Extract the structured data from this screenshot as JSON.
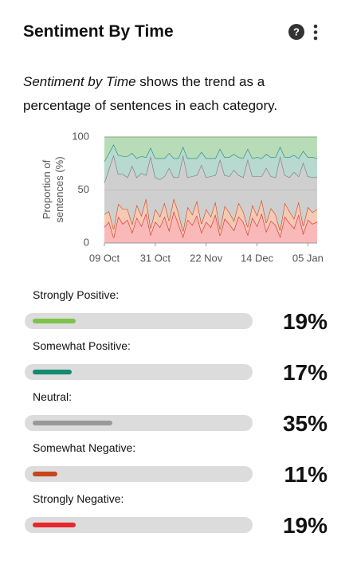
{
  "header": {
    "title": "Sentiment By Time"
  },
  "description": {
    "emphasis": "Sentiment by Time",
    "text": " shows the trend as a percentage of sentences in each category."
  },
  "chart_data": {
    "type": "stacked_area",
    "y_label": "Proportion of sentences (%)",
    "x": [
      "09 Oct",
      null,
      null,
      null,
      null,
      null,
      null,
      null,
      null,
      null,
      null,
      "31 Oct",
      null,
      null,
      null,
      null,
      null,
      null,
      null,
      null,
      null,
      null,
      "22 Nov",
      null,
      null,
      null,
      null,
      null,
      null,
      null,
      null,
      null,
      null,
      "14 Dec",
      null,
      null,
      null,
      null,
      null,
      null,
      null,
      null,
      null,
      null,
      "05 Jan",
      null,
      null
    ],
    "ylim": [
      0,
      100
    ],
    "yticks": [
      0,
      50,
      100
    ],
    "grid": true,
    "series": [
      {
        "name": "Strongly Negative",
        "color": "#e0262a",
        "fill": "#f9b9b9",
        "values": [
          15,
          20,
          5,
          25,
          18,
          22,
          10,
          24,
          16,
          28,
          8,
          20,
          15,
          25,
          12,
          30,
          18,
          6,
          22,
          17,
          26,
          10,
          20,
          15,
          27,
          7,
          23,
          18,
          12,
          25,
          20,
          8,
          24,
          16,
          28,
          11,
          21,
          17,
          6,
          25,
          19,
          14,
          27,
          9,
          22,
          18,
          20
        ]
      },
      {
        "name": "Somewhat Negative",
        "color": "#c9451d",
        "fill": "#f4cab5",
        "values": [
          12,
          10,
          8,
          12,
          14,
          10,
          8,
          12,
          10,
          14,
          6,
          12,
          10,
          13,
          9,
          12,
          11,
          5,
          12,
          10,
          14,
          8,
          12,
          10,
          12,
          6,
          12,
          11,
          9,
          13,
          10,
          7,
          12,
          10,
          13,
          8,
          12,
          10,
          6,
          13,
          11,
          9,
          12,
          7,
          12,
          11,
          12
        ]
      },
      {
        "name": "Neutral",
        "color": "#777777",
        "fill": "#cfcfcf",
        "values": [
          30,
          40,
          70,
          28,
          33,
          30,
          55,
          26,
          40,
          22,
          68,
          30,
          35,
          25,
          50,
          20,
          33,
          72,
          28,
          36,
          24,
          56,
          30,
          38,
          25,
          66,
          29,
          34,
          48,
          26,
          32,
          64,
          27,
          37,
          22,
          52,
          30,
          35,
          70,
          26,
          32,
          44,
          24,
          60,
          29,
          33,
          30
        ]
      },
      {
        "name": "Somewhat Positive",
        "color": "#138a72",
        "fill": "#b7d9cf",
        "values": [
          20,
          15,
          10,
          18,
          17,
          20,
          12,
          18,
          16,
          17,
          8,
          18,
          20,
          17,
          14,
          18,
          18,
          8,
          18,
          17,
          16,
          12,
          18,
          17,
          16,
          10,
          17,
          18,
          15,
          17,
          18,
          10,
          17,
          18,
          17,
          13,
          18,
          19,
          9,
          17,
          19,
          16,
          17,
          11,
          18,
          19,
          18
        ]
      },
      {
        "name": "Strongly Positive",
        "color": "#5fae4a",
        "fill": "#b9dcb8",
        "values": [
          23,
          15,
          7,
          17,
          18,
          18,
          15,
          20,
          18,
          19,
          10,
          20,
          20,
          20,
          15,
          20,
          20,
          9,
          20,
          20,
          20,
          14,
          20,
          20,
          20,
          11,
          19,
          19,
          16,
          19,
          20,
          11,
          20,
          19,
          20,
          16,
          19,
          19,
          9,
          19,
          19,
          17,
          20,
          13,
          19,
          19,
          20
        ]
      }
    ]
  },
  "breakdown": [
    {
      "label": "Strongly Positive:",
      "value": 19,
      "value_label": "19%",
      "color": "#7dc24b"
    },
    {
      "label": "Somewhat Positive:",
      "value": 17,
      "value_label": "17%",
      "color": "#138a72"
    },
    {
      "label": "Neutral:",
      "value": 35,
      "value_label": "35%",
      "color": "#999999"
    },
    {
      "label": "Somewhat Negative:",
      "value": 11,
      "value_label": "11%",
      "color": "#c9451d"
    },
    {
      "label": "Strongly Negative:",
      "value": 19,
      "value_label": "19%",
      "color": "#e8272d"
    }
  ]
}
